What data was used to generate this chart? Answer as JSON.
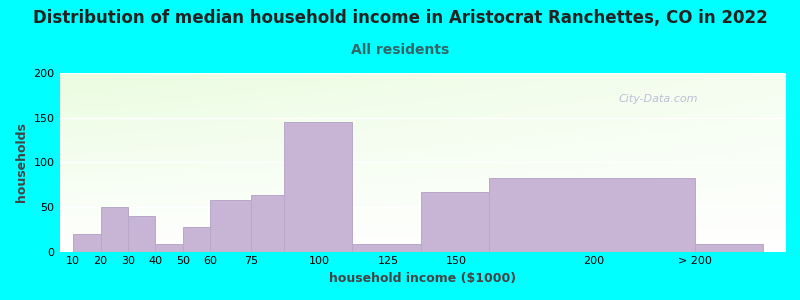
{
  "title": "Distribution of median household income in Aristocrat Ranchettes, CO in 2022",
  "subtitle": "All residents",
  "xlabel": "household income ($1000)",
  "ylabel": "households",
  "background_color": "#00FFFF",
  "bar_color": "#c8b5d5",
  "bar_edge_color": "#b8a8c8",
  "bar_values": [
    20,
    50,
    40,
    8,
    27,
    58,
    63,
    145,
    8,
    67,
    82,
    8
  ],
  "left_edges": [
    10,
    20,
    30,
    40,
    50,
    60,
    75,
    87,
    112,
    137,
    162,
    237
  ],
  "bar_widths": [
    10,
    10,
    10,
    10,
    10,
    15,
    12,
    25,
    25,
    25,
    75,
    25
  ],
  "tick_positions": [
    10,
    20,
    30,
    40,
    50,
    60,
    75,
    100,
    125,
    150,
    200,
    237
  ],
  "tick_labels": [
    "10",
    "20",
    "30",
    "40",
    "50",
    "60",
    "75",
    "100",
    "125",
    "150",
    "200",
    "> 200"
  ],
  "xlim": [
    5,
    270
  ],
  "ylim": [
    0,
    200
  ],
  "yticks": [
    0,
    50,
    100,
    150,
    200
  ],
  "title_fontsize": 12,
  "subtitle_fontsize": 10,
  "subtitle_color": "#336666",
  "axis_label_fontsize": 9,
  "tick_fontsize": 8,
  "watermark_text": "City-Data.com"
}
